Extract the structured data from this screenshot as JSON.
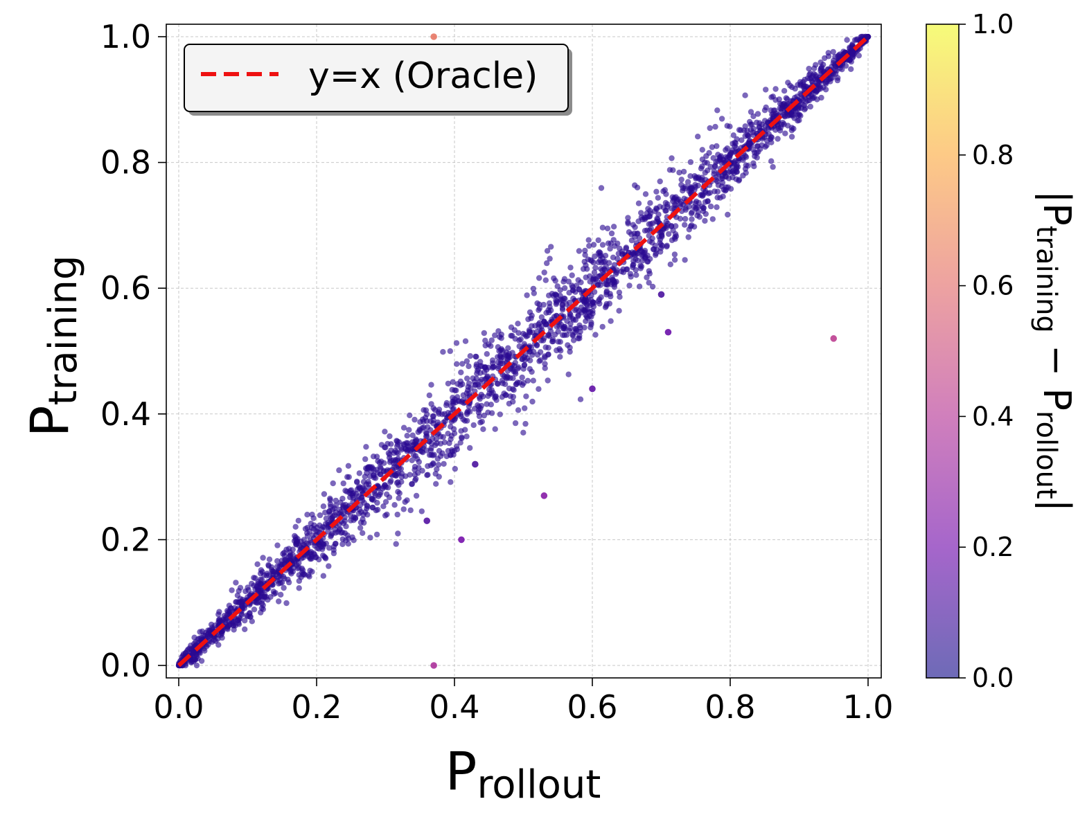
{
  "chart_data": {
    "type": "scatter",
    "title": "",
    "xlabel": {
      "main": "P",
      "sub": "rollout"
    },
    "ylabel": {
      "main": "P",
      "sub": "training"
    },
    "xlim": [
      0.0,
      1.0
    ],
    "ylim": [
      0.0,
      1.0
    ],
    "xticks": [
      "0.0",
      "0.2",
      "0.4",
      "0.6",
      "0.8",
      "1.0"
    ],
    "yticks": [
      "0.0",
      "0.2",
      "0.4",
      "0.6",
      "0.8",
      "1.0"
    ],
    "grid": true,
    "legend": {
      "position": "top-left",
      "entries": [
        "y=x (Oracle)"
      ]
    },
    "reference_line": {
      "label": "y=x (Oracle)",
      "color": "#ee1111",
      "style": "dashed",
      "from": [
        0.0,
        0.0
      ],
      "to": [
        1.0,
        1.0
      ]
    },
    "point_color": "#2a0a91",
    "colorbar": {
      "label_parts": [
        "|P",
        "training",
        " − P",
        "rollout",
        "|"
      ],
      "range": [
        0.0,
        1.0
      ],
      "ticks": [
        "0.0",
        "0.2",
        "0.4",
        "0.6",
        "0.8",
        "1.0"
      ],
      "colormap": "plasma"
    },
    "cluster": {
      "description": "dense cloud of points along y=x",
      "spread_std": 0.03,
      "n_points": 2600
    },
    "outliers": [
      {
        "x": 0.37,
        "y": 1.0,
        "abs_diff": 0.63
      },
      {
        "x": 0.37,
        "y": 0.0,
        "abs_diff": 0.37
      },
      {
        "x": 0.95,
        "y": 0.52,
        "abs_diff": 0.43
      },
      {
        "x": 0.53,
        "y": 0.27,
        "abs_diff": 0.26
      },
      {
        "x": 0.41,
        "y": 0.2,
        "abs_diff": 0.21
      },
      {
        "x": 0.71,
        "y": 0.53,
        "abs_diff": 0.18
      },
      {
        "x": 0.6,
        "y": 0.44,
        "abs_diff": 0.16
      },
      {
        "x": 0.36,
        "y": 0.23,
        "abs_diff": 0.13
      },
      {
        "x": 0.7,
        "y": 0.59,
        "abs_diff": 0.11
      },
      {
        "x": 0.43,
        "y": 0.32,
        "abs_diff": 0.11
      }
    ]
  }
}
